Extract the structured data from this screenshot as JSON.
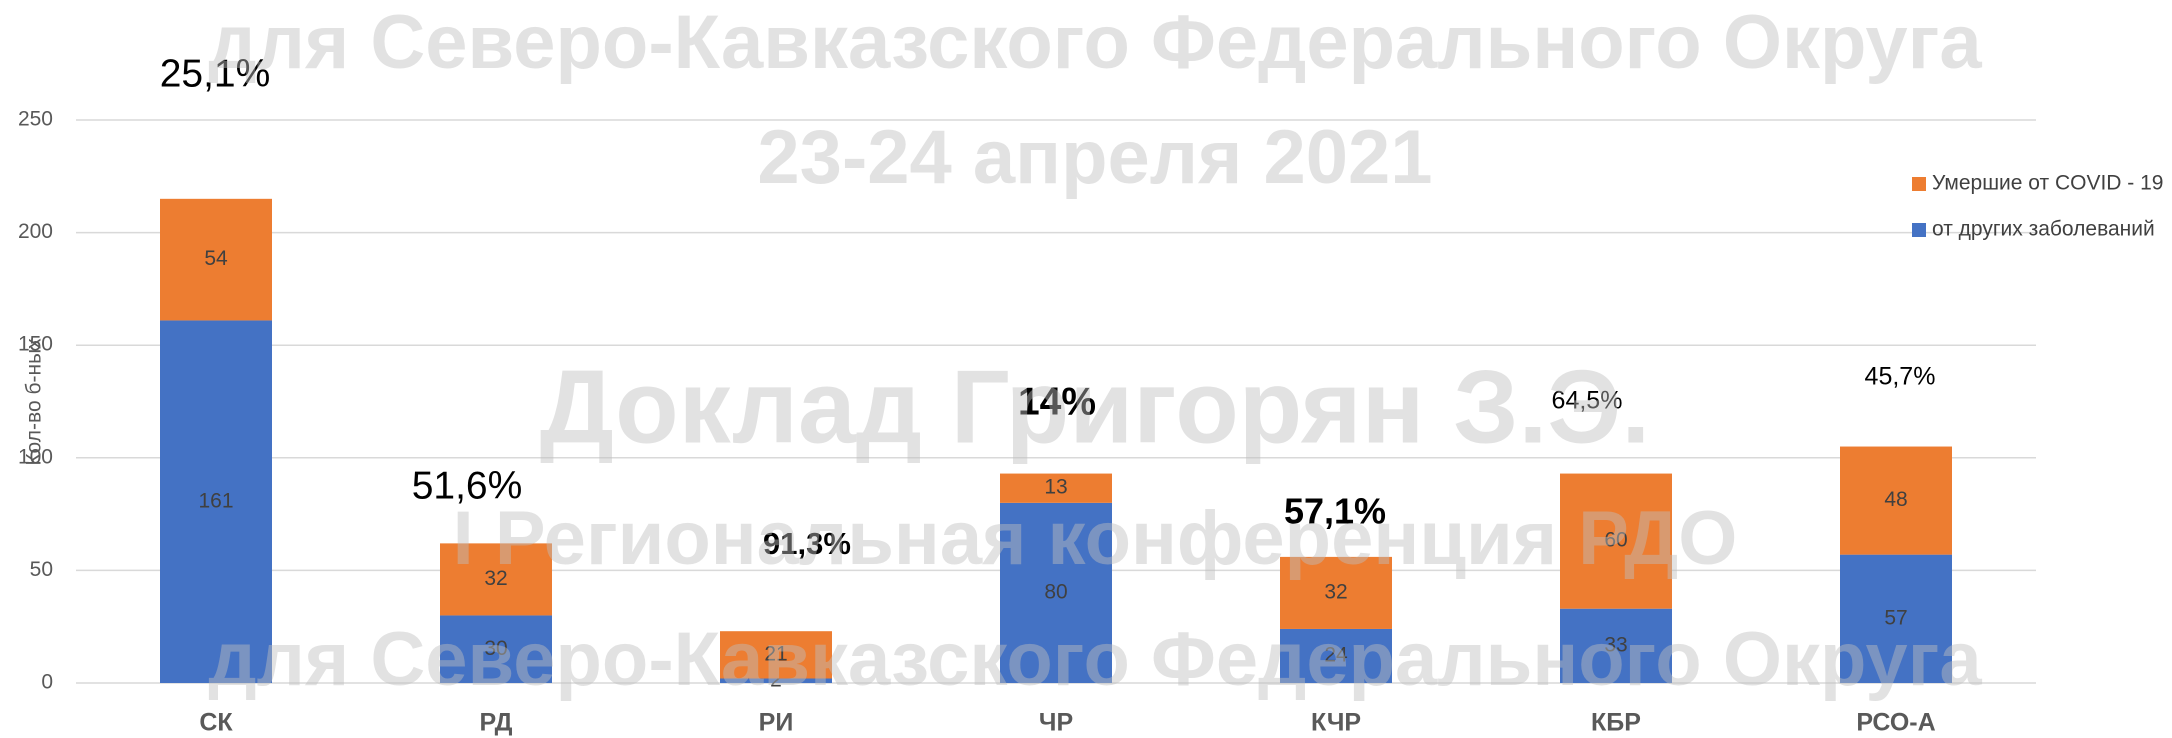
{
  "chart_data": {
    "type": "stacked_bar",
    "y_label": "Кол-во б-ных",
    "categories": [
      "СК",
      "РД",
      "РИ",
      "ЧР",
      "КЧР",
      "КБР",
      "РСО-А"
    ],
    "series": [
      {
        "name": "от других заболеваний",
        "color": "#4472c4",
        "values": [
          161,
          30,
          2,
          80,
          24,
          33,
          57
        ]
      },
      {
        "name": "Умершие от COVID - 19",
        "color": "#ed7d31",
        "values": [
          54,
          32,
          21,
          13,
          32,
          60,
          48
        ]
      }
    ],
    "annotations": [
      "25,1%",
      "51,6%",
      "91,3%",
      "14%",
      "57,1%",
      "64,5%",
      "45,7%"
    ],
    "watermark": [
      "для Северо-Кавказского Федерального Округа",
      "23-24 апреля 2021",
      "Доклад Григорян З.Э.",
      "I Региональная конференция РДО",
      "для Северо-Кавказского Федерального Округа"
    ],
    "ylim": [
      0,
      250
    ],
    "yticks": [
      0,
      50,
      100,
      150,
      200,
      250
    ],
    "grid": true,
    "legend": "right"
  }
}
